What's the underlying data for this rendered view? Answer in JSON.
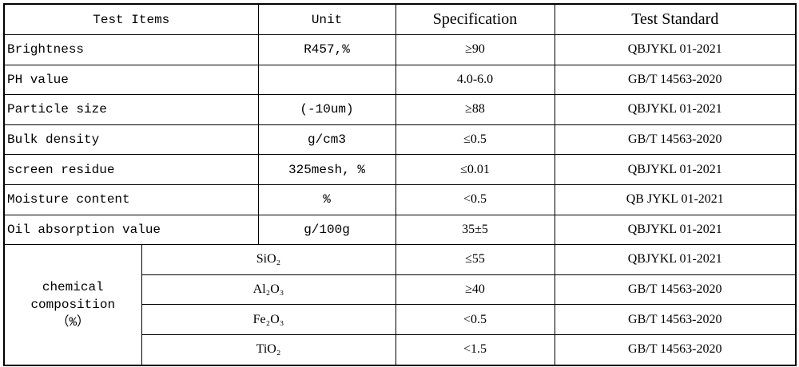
{
  "table": {
    "header": [
      "Test Items",
      "Unit",
      "Specification",
      "Test Standard"
    ],
    "rows": [
      [
        "Brightness",
        "R457,%",
        "≥90",
        "QBJYKL 01-2021"
      ],
      [
        "PH value",
        null,
        "4.0-6.0",
        "GB/T 14563-2020"
      ],
      [
        "Particle size",
        "(-10um)",
        "≥88",
        "QBJYKL 01-2021"
      ],
      [
        "Bulk density",
        "g/cm3",
        "≤0.5",
        "GB/T 14563-2020"
      ],
      [
        "screen residue",
        "325mesh, %",
        "≤0.01",
        "QBJYKL 01-2021"
      ],
      [
        "Moisture content",
        "%",
        "<0.5",
        "QB JYKL 01-2021"
      ],
      [
        "Oil absorption value",
        "g/100g",
        "35±5",
        "QBJYKL 01-2021"
      ]
    ],
    "group": {
      "label": "chemical\ncomposition\n（%）",
      "rows": [
        [
          "SiO₂",
          "≤55",
          "QBJYKL 01-2021"
        ],
        [
          "Al₂O₃",
          "≥40",
          "GB/T 14563-2020"
        ],
        [
          "Fe₂O₃",
          "<0.5",
          "GB/T 14563-2020"
        ],
        [
          "TiO₂",
          "<1.5",
          "GB/T 14563-2020"
        ]
      ]
    }
  }
}
